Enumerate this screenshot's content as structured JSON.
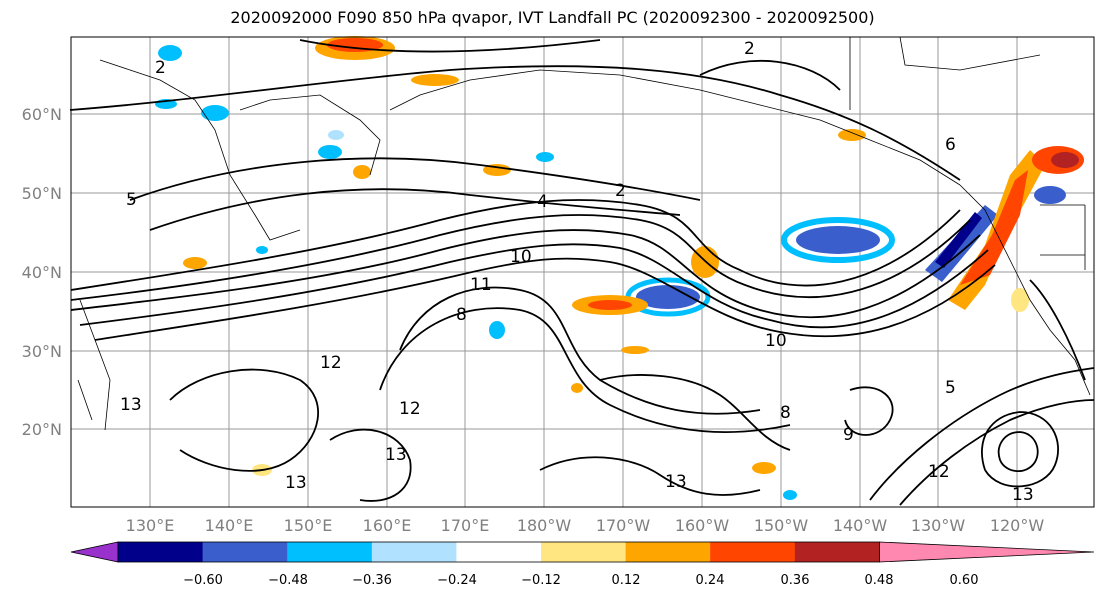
{
  "title": "2020092000 F090 850 hPa qvapor, IVT Landfall PC (2020092300 - 2020092500)",
  "lat_labels": [
    "60°N",
    "50°N",
    "40°N",
    "30°N",
    "20°N"
  ],
  "lon_labels": [
    "130°E",
    "140°E",
    "150°E",
    "160°E",
    "170°E",
    "180°W",
    "170°W",
    "160°W",
    "150°W",
    "140°W",
    "130°W",
    "120°W"
  ],
  "colorbar": {
    "colors": [
      "#9932cc",
      "#00008b",
      "#3a5fcd",
      "#00bfff",
      "#b0e2ff",
      "#ffffff",
      "#ffe680",
      "#ffa500",
      "#ff4500",
      "#b22222",
      "#ff88b0"
    ],
    "tick_labels": [
      "−0.60",
      "−0.48",
      "−0.36",
      "−0.24",
      "−0.12",
      "0.12",
      "0.24",
      "0.36",
      "0.48",
      "0.60"
    ]
  },
  "contour_labels": [
    "2",
    "4",
    "5",
    "6",
    "8",
    "9",
    "10",
    "11",
    "12",
    "13"
  ],
  "colors": {
    "grid": "#999999",
    "tick_label": "#808080",
    "contour": "#000000"
  }
}
